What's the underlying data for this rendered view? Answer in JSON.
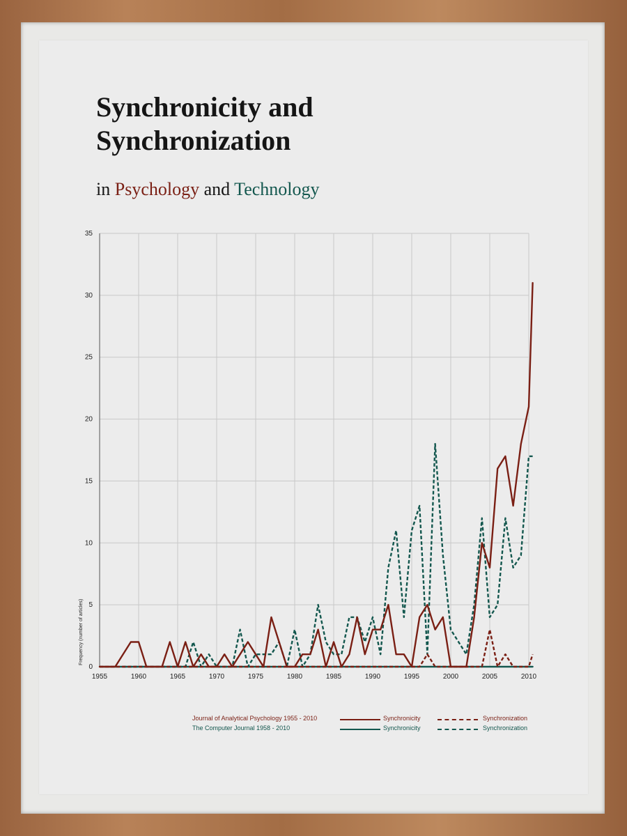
{
  "title": {
    "line1": "Synchronicity and",
    "line2": "Synchronization"
  },
  "subtitle": {
    "prefix": "in ",
    "psychology": "Psychology",
    "middle": " and ",
    "technology": "Technology"
  },
  "colors": {
    "psychology": "#7a1f14",
    "technology": "#13574e",
    "grid": "#c8c8c8",
    "axis": "#555555"
  },
  "legend": {
    "rows": [
      {
        "label": "Journal of Analytical Psychology 1955 - 2010",
        "solid_label": "Synchronicity",
        "dashed_label": "Synchronization",
        "color": "#7a1f14"
      },
      {
        "label": "The Computer Journal 1958 - 2010",
        "solid_label": "Synchronicity",
        "dashed_label": "Synchronization",
        "color": "#13574e"
      }
    ]
  },
  "chart_data": {
    "type": "line",
    "title": "",
    "xlabel": "",
    "ylabel": "Frequency (number of articles)",
    "xlim": [
      1955,
      2010
    ],
    "ylim": [
      0,
      35
    ],
    "x_ticks": [
      "1955",
      "1960",
      "1965",
      "1970",
      "1975",
      "1980",
      "1985",
      "1990",
      "1995",
      "2000",
      "2005",
      "2010"
    ],
    "y_ticks": [
      "0",
      "5",
      "10",
      "15",
      "20",
      "25",
      "30",
      "35"
    ],
    "grid": true,
    "legend_position": "bottom",
    "series": [
      {
        "name": "Synchronicity",
        "source": "Journal of Analytical Psychology 1955 - 2010",
        "style": "solid",
        "color": "#7a1f14",
        "points": [
          [
            1955,
            0
          ],
          [
            1957,
            0
          ],
          [
            1959,
            2
          ],
          [
            1960,
            2
          ],
          [
            1961,
            0
          ],
          [
            1963,
            0
          ],
          [
            1964,
            2
          ],
          [
            1965,
            0
          ],
          [
            1966,
            2
          ],
          [
            1967,
            0
          ],
          [
            1968,
            1
          ],
          [
            1969,
            0
          ],
          [
            1970,
            0
          ],
          [
            1971,
            1
          ],
          [
            1972,
            0
          ],
          [
            1973,
            1
          ],
          [
            1974,
            2
          ],
          [
            1975,
            1
          ],
          [
            1976,
            0
          ],
          [
            1977,
            4
          ],
          [
            1978,
            2
          ],
          [
            1979,
            0
          ],
          [
            1980,
            0
          ],
          [
            1981,
            1
          ],
          [
            1982,
            1
          ],
          [
            1983,
            3
          ],
          [
            1984,
            0
          ],
          [
            1985,
            2
          ],
          [
            1986,
            0
          ],
          [
            1987,
            1
          ],
          [
            1988,
            4
          ],
          [
            1989,
            1
          ],
          [
            1990,
            3
          ],
          [
            1991,
            3
          ],
          [
            1992,
            5
          ],
          [
            1993,
            1
          ],
          [
            1994,
            1
          ],
          [
            1995,
            0
          ],
          [
            1996,
            4
          ],
          [
            1997,
            5
          ],
          [
            1998,
            3
          ],
          [
            1999,
            4
          ],
          [
            2000,
            0
          ],
          [
            2001,
            0
          ],
          [
            2002,
            0
          ],
          [
            2003,
            4
          ],
          [
            2004,
            10
          ],
          [
            2005,
            8
          ],
          [
            2006,
            16
          ],
          [
            2007,
            17
          ],
          [
            2008,
            13
          ],
          [
            2009,
            18
          ],
          [
            2010,
            21
          ],
          [
            2010.5,
            31
          ]
        ]
      },
      {
        "name": "Synchronization",
        "source": "Journal of Analytical Psychology 1955 - 2010",
        "style": "dashed",
        "color": "#7a1f14",
        "points": [
          [
            1955,
            0
          ],
          [
            1996,
            0
          ],
          [
            1997,
            1
          ],
          [
            1998,
            0
          ],
          [
            2000,
            0
          ],
          [
            2001,
            0
          ],
          [
            2003,
            0
          ],
          [
            2004,
            0
          ],
          [
            2005,
            3
          ],
          [
            2006,
            0
          ],
          [
            2007,
            1
          ],
          [
            2008,
            0
          ],
          [
            2010,
            0
          ],
          [
            2010.5,
            1
          ]
        ]
      },
      {
        "name": "Synchronicity",
        "source": "The Computer Journal 1958 - 2010",
        "style": "solid",
        "color": "#13574e",
        "points": [
          [
            1955,
            0
          ],
          [
            2010.5,
            0
          ]
        ]
      },
      {
        "name": "Synchronization",
        "source": "The Computer Journal 1958 - 2010",
        "style": "dashed",
        "color": "#13574e",
        "points": [
          [
            1958,
            0
          ],
          [
            1965,
            0
          ],
          [
            1966,
            0
          ],
          [
            1967,
            2
          ],
          [
            1968,
            0
          ],
          [
            1969,
            1
          ],
          [
            1970,
            0
          ],
          [
            1972,
            0
          ],
          [
            1973,
            3
          ],
          [
            1974,
            0
          ],
          [
            1975,
            1
          ],
          [
            1976,
            1
          ],
          [
            1977,
            1
          ],
          [
            1978,
            2
          ],
          [
            1979,
            0
          ],
          [
            1980,
            3
          ],
          [
            1981,
            0
          ],
          [
            1982,
            1
          ],
          [
            1983,
            5
          ],
          [
            1984,
            2
          ],
          [
            1985,
            1
          ],
          [
            1986,
            1
          ],
          [
            1987,
            4
          ],
          [
            1988,
            4
          ],
          [
            1989,
            2
          ],
          [
            1990,
            4
          ],
          [
            1991,
            1
          ],
          [
            1992,
            8
          ],
          [
            1993,
            11
          ],
          [
            1994,
            4
          ],
          [
            1995,
            11
          ],
          [
            1996,
            13
          ],
          [
            1997,
            1
          ],
          [
            1998,
            18
          ],
          [
            1999,
            9
          ],
          [
            2000,
            3
          ],
          [
            2001,
            2
          ],
          [
            2002,
            1
          ],
          [
            2003,
            5
          ],
          [
            2004,
            12
          ],
          [
            2005,
            4
          ],
          [
            2006,
            5
          ],
          [
            2007,
            12
          ],
          [
            2008,
            8
          ],
          [
            2009,
            9
          ],
          [
            2010,
            17
          ],
          [
            2010.5,
            17
          ]
        ]
      }
    ]
  }
}
